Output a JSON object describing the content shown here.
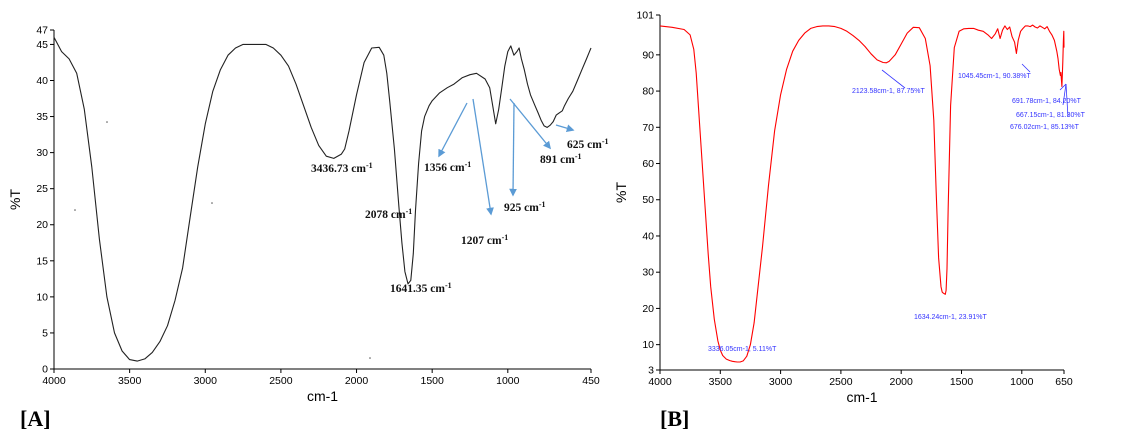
{
  "figure": {
    "panel_a_label": "[A]",
    "panel_b_label": "[B]"
  },
  "chart_data": [
    {
      "type": "line",
      "panel": "[A]",
      "title": "",
      "xlabel": "cm-1",
      "ylabel": "%T",
      "xlim": [
        4000,
        450
      ],
      "ylim": [
        0,
        47
      ],
      "x_ticks": [
        "4000",
        "3500",
        "3000",
        "2500",
        "2000",
        "1500",
        "1000",
        "450"
      ],
      "x_tick_values": [
        4000,
        3500,
        3000,
        2500,
        2000,
        1500,
        1000,
        450
      ],
      "y_ticks": [
        "0",
        "5",
        "10",
        "15",
        "20",
        "25",
        "30",
        "35",
        "40",
        "45",
        "47"
      ],
      "y_tick_values": [
        0,
        5,
        10,
        15,
        20,
        25,
        30,
        35,
        40,
        45,
        47
      ],
      "grid": false,
      "line_color": "#222222",
      "arrow_color": "#5b9bd5",
      "series": [
        {
          "x": [
            4000,
            3950,
            3900,
            3850,
            3800,
            3750,
            3700,
            3650,
            3600,
            3550,
            3500,
            3450,
            3400,
            3350,
            3300,
            3250,
            3200,
            3150,
            3100,
            3050,
            3000,
            2950,
            2900,
            2850,
            2800,
            2750,
            2700,
            2650,
            2600,
            2550,
            2500,
            2450,
            2400,
            2350,
            2300,
            2250,
            2200,
            2150,
            2100,
            2078,
            2050,
            2000,
            1950,
            1900,
            1850,
            1820,
            1800,
            1780,
            1750,
            1720,
            1700,
            1680,
            1660,
            1641,
            1625,
            1610,
            1590,
            1570,
            1550,
            1520,
            1500,
            1450,
            1400,
            1356,
            1300,
            1250,
            1207,
            1150,
            1120,
            1100,
            1080,
            1060,
            1040,
            1020,
            1000,
            980,
            960,
            940,
            925,
            910,
            891,
            870,
            850,
            820,
            800,
            780,
            760,
            740,
            720,
            700,
            680,
            660,
            640,
            625,
            600,
            570,
            540,
            510,
            480,
            460,
            450
          ],
          "y": [
            46,
            44,
            43,
            41,
            36,
            28,
            18,
            10,
            5,
            2.5,
            1.3,
            1.1,
            1.4,
            2.3,
            3.8,
            6,
            9.5,
            14,
            21,
            28,
            34,
            38.5,
            41.5,
            43.5,
            44.5,
            45,
            45,
            45,
            45,
            44.5,
            43.5,
            42,
            39.5,
            36.5,
            33.5,
            31,
            29.5,
            29.2,
            29.8,
            30.5,
            33,
            38,
            42.5,
            44.5,
            44.6,
            43.5,
            41,
            37,
            30.5,
            22.5,
            17.5,
            13.5,
            11.8,
            12.3,
            16,
            22,
            28.5,
            33,
            35,
            36.5,
            37.2,
            38.3,
            39,
            39.5,
            40.4,
            40.8,
            41,
            40.2,
            39,
            36.5,
            34,
            36,
            39,
            42,
            44,
            44.8,
            43.5,
            44,
            44.5,
            43,
            41.5,
            39.5,
            38,
            36.5,
            35.5,
            34.5,
            33.7,
            33.5,
            33.8,
            34.3,
            35.2,
            35.5,
            35.8,
            36.5,
            37.5,
            38.5,
            40,
            41.5,
            43,
            44,
            44.5
          ]
        }
      ],
      "annotations": [
        {
          "text": "3436.73 cm-1",
          "x": 3436.73,
          "y": 1.1
        },
        {
          "text": "2078 cm-1",
          "x": 2078,
          "y": 29.2
        },
        {
          "text": "1641.35 cm-1",
          "x": 1641.35,
          "y": 11.8
        },
        {
          "text": "1356 cm-1",
          "x": 1356,
          "y": 39.5
        },
        {
          "text": "1207 cm-1",
          "x": 1207,
          "y": 41
        },
        {
          "text": "925 cm-1",
          "x": 925,
          "y": 44
        },
        {
          "text": "891 cm-1",
          "x": 891,
          "y": 43
        },
        {
          "text": "625 cm-1",
          "x": 625,
          "y": 35.8
        }
      ]
    },
    {
      "type": "line",
      "panel": "[B]",
      "title": "",
      "xlabel": "cm-1",
      "ylabel": "%T",
      "xlim": [
        4000,
        650
      ],
      "ylim": [
        3,
        101
      ],
      "x_ticks": [
        "4000",
        "3500",
        "3000",
        "2500",
        "2000",
        "1500",
        "1000",
        "650"
      ],
      "x_tick_values": [
        4000,
        3500,
        3000,
        2500,
        2000,
        1500,
        1000,
        650
      ],
      "y_ticks": [
        "3",
        "10",
        "20",
        "30",
        "40",
        "50",
        "60",
        "70",
        "80",
        "90",
        "101"
      ],
      "y_tick_values": [
        3,
        10,
        20,
        30,
        40,
        50,
        60,
        70,
        80,
        90,
        101
      ],
      "grid": false,
      "line_color": "#ff0000",
      "annotation_color": "#3333ff",
      "series": [
        {
          "x": [
            4000,
            3900,
            3800,
            3750,
            3720,
            3700,
            3680,
            3650,
            3620,
            3600,
            3580,
            3550,
            3520,
            3500,
            3480,
            3450,
            3420,
            3400,
            3380,
            3360,
            3336,
            3310,
            3280,
            3250,
            3220,
            3200,
            3150,
            3100,
            3050,
            3000,
            2950,
            2900,
            2850,
            2800,
            2750,
            2700,
            2650,
            2600,
            2550,
            2500,
            2450,
            2400,
            2350,
            2300,
            2250,
            2200,
            2150,
            2123,
            2100,
            2050,
            2000,
            1950,
            1900,
            1850,
            1800,
            1760,
            1730,
            1710,
            1690,
            1670,
            1660,
            1650,
            1640,
            1634,
            1628,
            1620,
            1610,
            1590,
            1560,
            1520,
            1480,
            1440,
            1400,
            1360,
            1320,
            1280,
            1250,
            1220,
            1200,
            1180,
            1160,
            1140,
            1120,
            1100,
            1080,
            1060,
            1045,
            1030,
            1010,
            990,
            970,
            950,
            930,
            910,
            890,
            870,
            850,
            830,
            810,
            790,
            770,
            750,
            730,
            710,
            700,
            690,
            680,
            676,
            667,
            660,
            655,
            652,
            650
          ],
          "y": [
            98,
            97.6,
            97,
            95.5,
            91.5,
            85,
            75,
            60,
            45,
            35,
            26,
            17,
            11,
            8.5,
            7,
            6,
            5.6,
            5.4,
            5.3,
            5.2,
            5.2,
            5.5,
            6.8,
            10,
            16,
            22,
            37,
            54,
            69,
            79,
            86,
            91,
            94,
            96,
            97.3,
            97.8,
            98,
            98,
            97.8,
            97.3,
            96.5,
            95.3,
            94,
            92.3,
            90.3,
            88.6,
            87.9,
            87.8,
            88.2,
            90,
            93,
            96,
            97.6,
            97.5,
            94.5,
            87,
            72,
            52,
            34,
            26,
            24.5,
            24.2,
            24,
            23.9,
            25,
            31,
            48,
            76,
            92,
            96.5,
            97.2,
            97.3,
            97.3,
            96.8,
            96.5,
            95.5,
            94.5,
            95.8,
            97.2,
            94.5,
            96.8,
            98,
            97,
            97.7,
            95,
            93.5,
            90.4,
            94,
            96.5,
            97.3,
            98,
            98,
            97.8,
            98.2,
            97.7,
            97.4,
            98,
            97.6,
            97.2,
            97.8,
            96.5,
            95.5,
            94,
            91,
            89,
            86,
            84.3,
            85.1,
            81.3,
            88,
            94,
            96.5,
            92
          ]
        }
      ],
      "annotations": [
        {
          "text": "3336.05cm-1, 5.11%T",
          "x": 3336.05,
          "y": 5.11
        },
        {
          "text": "2123.58cm-1, 87.75%T",
          "x": 2123.58,
          "y": 87.75
        },
        {
          "text": "1634.24cm-1, 23.91%T",
          "x": 1634.24,
          "y": 23.91
        },
        {
          "text": "1045.45cm-1, 90.38%T",
          "x": 1045.45,
          "y": 90.38
        },
        {
          "text": "691.78cm-1, 84.20%T",
          "x": 691.78,
          "y": 84.2
        },
        {
          "text": "667.15cm-1, 81.30%T",
          "x": 667.15,
          "y": 81.3
        },
        {
          "text": "676.02cm-1, 85.13%T",
          "x": 676.02,
          "y": 85.13
        }
      ]
    }
  ]
}
